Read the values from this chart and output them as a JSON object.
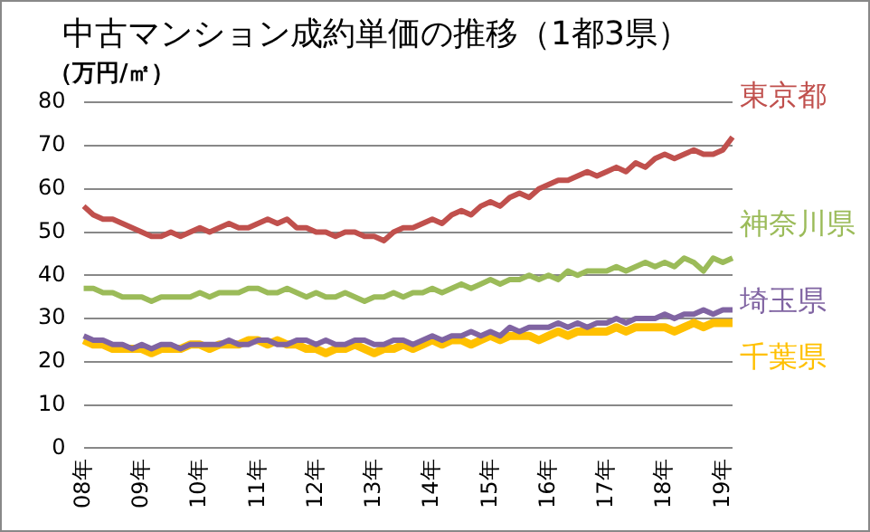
{
  "chart_data": {
    "type": "line",
    "title": "中古マンション成約単価の推移（1都3県）",
    "ylabel": "（万円/㎡）",
    "categories": [
      "08年",
      null,
      null,
      null,
      null,
      null,
      "09年",
      null,
      null,
      null,
      null,
      null,
      "10年",
      null,
      null,
      null,
      null,
      null,
      "11年",
      null,
      null,
      null,
      null,
      null,
      "12年",
      null,
      null,
      null,
      null,
      null,
      "13年",
      null,
      null,
      null,
      null,
      null,
      "14年",
      null,
      null,
      null,
      null,
      null,
      "15年",
      null,
      null,
      null,
      null,
      null,
      "16年",
      null,
      null,
      null,
      null,
      null,
      "17年",
      null,
      null,
      null,
      null,
      null,
      "18年",
      null,
      null,
      null,
      null,
      null,
      "19年",
      null
    ],
    "series": [
      {
        "name": "東京都",
        "color": "#c0504d",
        "values": [
          56,
          54,
          53,
          53,
          52,
          51,
          50,
          49,
          49,
          50,
          49,
          50,
          51,
          50,
          51,
          52,
          51,
          51,
          52,
          53,
          52,
          53,
          51,
          51,
          50,
          50,
          49,
          50,
          50,
          49,
          49,
          48,
          50,
          51,
          51,
          52,
          53,
          52,
          54,
          55,
          54,
          56,
          57,
          56,
          58,
          59,
          58,
          60,
          61,
          62,
          62,
          63,
          64,
          63,
          64,
          65,
          64,
          66,
          65,
          67,
          68,
          67,
          68,
          69,
          68,
          68,
          69,
          72
        ]
      },
      {
        "name": "神奈川県",
        "color": "#9bbb59",
        "values": [
          37,
          37,
          36,
          36,
          35,
          35,
          35,
          34,
          35,
          35,
          35,
          35,
          36,
          35,
          36,
          36,
          36,
          37,
          37,
          36,
          36,
          37,
          36,
          35,
          36,
          35,
          35,
          36,
          35,
          34,
          35,
          35,
          36,
          35,
          36,
          36,
          37,
          36,
          37,
          38,
          37,
          38,
          39,
          38,
          39,
          39,
          40,
          39,
          40,
          39,
          41,
          40,
          41,
          41,
          41,
          42,
          41,
          42,
          43,
          42,
          43,
          42,
          44,
          43,
          41,
          44,
          43,
          44
        ]
      },
      {
        "name": "埼玉県",
        "color": "#8064a2",
        "values": [
          26,
          25,
          25,
          24,
          24,
          23,
          24,
          23,
          24,
          24,
          23,
          24,
          24,
          24,
          24,
          25,
          24,
          24,
          25,
          25,
          24,
          24,
          25,
          25,
          24,
          25,
          24,
          24,
          25,
          25,
          24,
          24,
          25,
          25,
          24,
          25,
          26,
          25,
          26,
          26,
          27,
          26,
          27,
          26,
          28,
          27,
          28,
          28,
          28,
          29,
          28,
          29,
          28,
          29,
          29,
          30,
          29,
          30,
          30,
          30,
          31,
          30,
          31,
          31,
          32,
          31,
          32,
          32
        ]
      },
      {
        "name": "千葉県",
        "color": "#ffc000",
        "values": [
          25,
          24,
          24,
          23,
          23,
          23,
          23,
          22,
          23,
          23,
          23,
          24,
          24,
          23,
          24,
          24,
          24,
          25,
          25,
          24,
          25,
          24,
          24,
          23,
          23,
          22,
          23,
          23,
          24,
          23,
          22,
          23,
          23,
          24,
          23,
          24,
          25,
          24,
          25,
          25,
          24,
          25,
          26,
          25,
          26,
          26,
          26,
          25,
          26,
          27,
          26,
          27,
          27,
          27,
          27,
          28,
          27,
          28,
          28,
          28,
          28,
          27,
          28,
          29,
          28,
          29,
          29,
          29
        ]
      }
    ],
    "ylim": [
      0,
      80
    ],
    "yticks": [
      0,
      10,
      20,
      30,
      40,
      50,
      60,
      70,
      80
    ],
    "grid": "y",
    "legend": false,
    "marker": "none",
    "line_style": "solid"
  }
}
